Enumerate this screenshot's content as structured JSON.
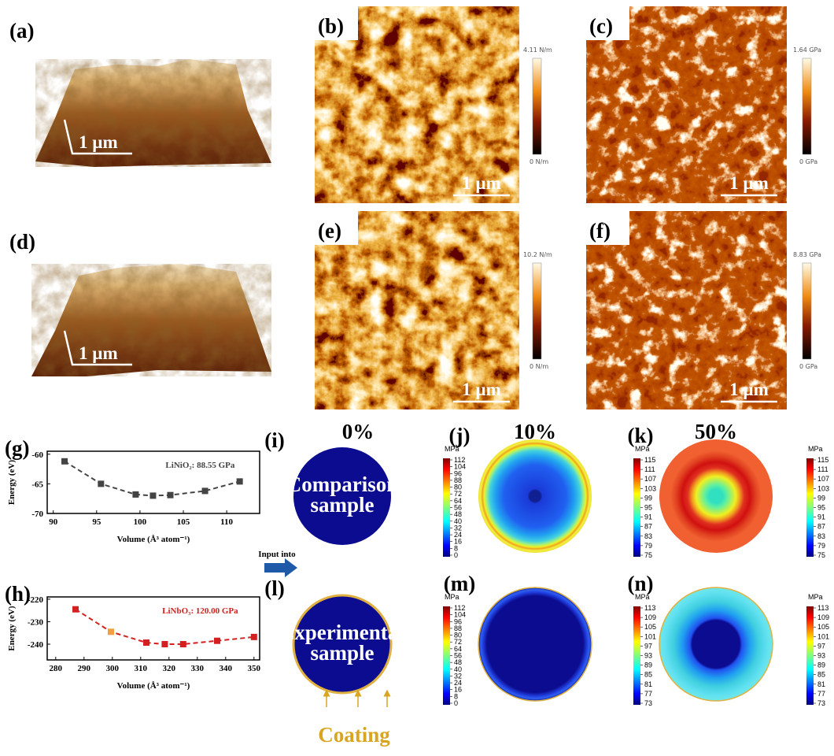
{
  "afm_3d": [
    {
      "label": "(a)",
      "scale": "1 µm"
    },
    {
      "label": "(d)",
      "scale": "1 µm"
    }
  ],
  "maps": [
    {
      "label": "(b)",
      "max": "4.11 N/m",
      "min": "0 N/m",
      "scale": "1 µm"
    },
    {
      "label": "(c)",
      "max": "1.64 GPa",
      "min": "0 GPa",
      "scale": "1 µm"
    },
    {
      "label": "(e)",
      "max": "10.2 N/m",
      "min": "0 N/m",
      "scale": "1 µm"
    },
    {
      "label": "(f)",
      "max": "8.83 GPa",
      "min": "0 GPa",
      "scale": "1 µm"
    }
  ],
  "charts": [
    {
      "label": "(g)",
      "type": "line",
      "title": "LiNiO₂: 88.55 GPa",
      "x_label": "Volume (Å³ atom⁻¹)",
      "y_label": "Energy (eV)",
      "x": [
        91.3,
        95.5,
        99.5,
        101.5,
        103.5,
        107.5,
        111.5
      ],
      "values": [
        -61.2,
        -65,
        -66.8,
        -67,
        -66.9,
        -66.2,
        -64.6
      ],
      "color": "#444444",
      "xlim": [
        89.3,
        113.8
      ],
      "ylim": [
        -70,
        -59.5
      ],
      "xticks": [
        90,
        95,
        100,
        105,
        110
      ],
      "yticks": [
        -60,
        -65,
        -70
      ]
    },
    {
      "label": "(h)",
      "type": "line",
      "title": "LiNbO₃: 120.00 GPa",
      "x_label": "Volume (Å³ atom⁻¹)",
      "y_label": "Energy (eV)",
      "x": [
        287,
        299.5,
        312,
        318.5,
        325,
        337,
        350
      ],
      "values": [
        -224.5,
        -234.5,
        -239.3,
        -240,
        -240,
        -238.5,
        -236.8
      ],
      "color": "#d42020",
      "point_colors": [
        "#d42020",
        "#f0a040",
        "#d42020",
        "#d42020",
        "#d42020",
        "#d42020",
        "#d42020"
      ],
      "xlim": [
        277,
        352
      ],
      "ylim": [
        -247,
        -219
      ],
      "xticks": [
        280,
        290,
        300,
        310,
        320,
        330,
        340,
        350
      ],
      "yticks": [
        -220,
        -230,
        -240
      ]
    }
  ],
  "stress": {
    "unit": "MPa",
    "arrow": "Input into",
    "coating": "Coating",
    "panels": [
      {
        "label": "(i)",
        "title": "0%",
        "text": [
          "Comparison",
          "sample"
        ],
        "ticks": [
          112,
          104,
          96,
          88,
          80,
          72,
          64,
          56,
          48,
          40,
          32,
          24,
          16,
          8,
          0
        ]
      },
      {
        "label": "(j)",
        "title": "10%",
        "ticks": [
          115,
          111,
          107,
          103,
          99,
          95,
          91,
          87,
          83,
          79,
          75
        ]
      },
      {
        "label": "(k)",
        "title": "50%",
        "ticks": [
          115,
          111,
          107,
          103,
          99,
          95,
          91,
          87,
          83,
          79,
          75
        ]
      },
      {
        "label": "(l)",
        "text": [
          "Experimental",
          "sample"
        ],
        "ticks": [
          112,
          104,
          96,
          88,
          80,
          72,
          64,
          56,
          48,
          40,
          32,
          24,
          16,
          8,
          0
        ]
      },
      {
        "label": "(m)",
        "ticks": [
          113,
          109,
          105,
          101,
          97,
          93,
          89,
          85,
          81,
          77,
          73
        ]
      },
      {
        "label": "(n)",
        "ticks": [
          113,
          109,
          105,
          101,
          97,
          93,
          89,
          85,
          81,
          77,
          73
        ]
      }
    ]
  }
}
